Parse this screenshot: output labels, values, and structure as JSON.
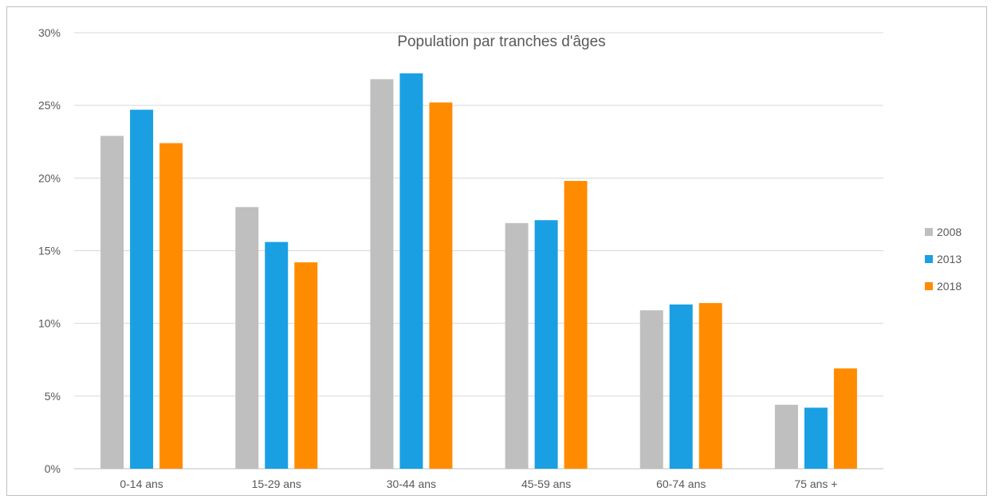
{
  "chart_data": {
    "type": "bar",
    "title": "Population par tranches d'âges",
    "xlabel": "",
    "ylabel": "",
    "categories": [
      "0-14 ans",
      "15-29 ans",
      "30-44 ans",
      "45-59 ans",
      "60-74 ans",
      "75 ans +"
    ],
    "series": [
      {
        "name": "2008",
        "color": "#bfbfbf",
        "values": [
          22.9,
          18.0,
          26.8,
          16.9,
          10.9,
          4.4
        ]
      },
      {
        "name": "2013",
        "color": "#1a9fe3",
        "values": [
          24.7,
          15.6,
          27.2,
          17.1,
          11.3,
          4.2
        ]
      },
      {
        "name": "2018",
        "color": "#ff8c00",
        "values": [
          22.4,
          14.2,
          25.2,
          19.8,
          11.4,
          6.9
        ]
      }
    ],
    "ylim": [
      0,
      30
    ],
    "yticks": [
      "0%",
      "5%",
      "10%",
      "15%",
      "20%",
      "25%",
      "30%"
    ],
    "grid": true,
    "legend_position": "right"
  }
}
